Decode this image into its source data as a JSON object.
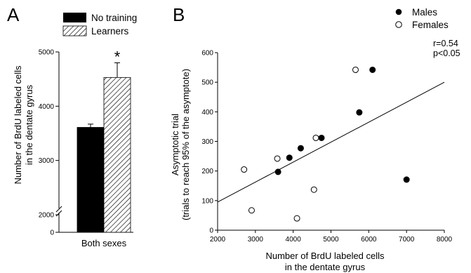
{
  "panels": {
    "a_letter": "A",
    "b_letter": "B"
  },
  "chart_data": [
    {
      "type": "bar",
      "categories": [
        "Both sexes"
      ],
      "series": [
        {
          "name": "No training",
          "values": [
            3610
          ],
          "error": [
            60
          ],
          "color": "#000000"
        },
        {
          "name": "Learners",
          "values": [
            4530
          ],
          "error": [
            270
          ],
          "pattern": "diagonal-hatch"
        }
      ],
      "ylabel": "Number of BrdU labeled cells in the dentate gyrus",
      "ylabel_lines": [
        "Number of BrdU labeled cells",
        "in the dentate gyrus"
      ],
      "yticks": [
        0,
        2000,
        3000,
        4000,
        5000
      ],
      "ylim": [
        2000,
        5000
      ],
      "axis_break": "between 0 and 2000",
      "significance": "*",
      "legend": "top-right",
      "grid": false
    },
    {
      "type": "scatter",
      "series": [
        {
          "name": "Males",
          "marker": "filled-circle",
          "x": [
            3600,
            3900,
            4200,
            4750,
            5750,
            6100,
            7000
          ],
          "y": [
            197,
            245,
            277,
            312,
            398,
            542,
            171
          ]
        },
        {
          "name": "Females",
          "marker": "open-circle",
          "x": [
            2700,
            2900,
            3580,
            4100,
            4550,
            4600,
            5650
          ],
          "y": [
            205,
            67,
            242,
            40,
            137,
            312,
            542
          ]
        }
      ],
      "fit_line": {
        "x": [
          2000,
          8000
        ],
        "y": [
          95,
          500
        ]
      },
      "xlabel": "Number of BrdU labeled cells in the dentate gyrus",
      "xlabel_lines": [
        "Number of BrdU labeled cells",
        "in the dentate gyrus"
      ],
      "ylabel": "Asymptotic trial (trials to reach 95% of the asymptote)",
      "ylabel_lines": [
        "Asymptotic trial",
        "(trials to reach 95% of the asymptote)"
      ],
      "xticks": [
        2000,
        3000,
        4000,
        5000,
        6000,
        7000,
        8000
      ],
      "yticks": [
        0,
        100,
        200,
        300,
        400,
        500,
        600
      ],
      "xlim": [
        2000,
        8000
      ],
      "ylim": [
        0,
        600
      ],
      "stats": [
        "r=0.54",
        "p<0.05"
      ],
      "legend": "top-right",
      "grid": false
    }
  ]
}
